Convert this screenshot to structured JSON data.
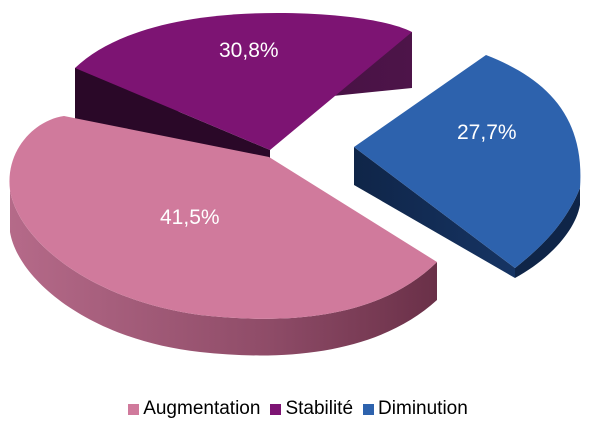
{
  "chart_data": {
    "type": "pie",
    "title": "",
    "categories": [
      "Augmentation",
      "Stabilité",
      "Diminution"
    ],
    "values": [
      41.5,
      30.8,
      27.7
    ],
    "data_labels": [
      "41,5%",
      "30,8%",
      "27,7%"
    ],
    "colors": [
      "#d07a9c",
      "#7d1473",
      "#2d62ad"
    ],
    "side_colors": [
      "#7a3e57",
      "#3a0c38",
      "#112a53"
    ],
    "legend": {
      "placement": "bottom",
      "entries": [
        "Augmentation",
        "Stabilité",
        "Diminution"
      ]
    },
    "style": "3d-exploded"
  }
}
